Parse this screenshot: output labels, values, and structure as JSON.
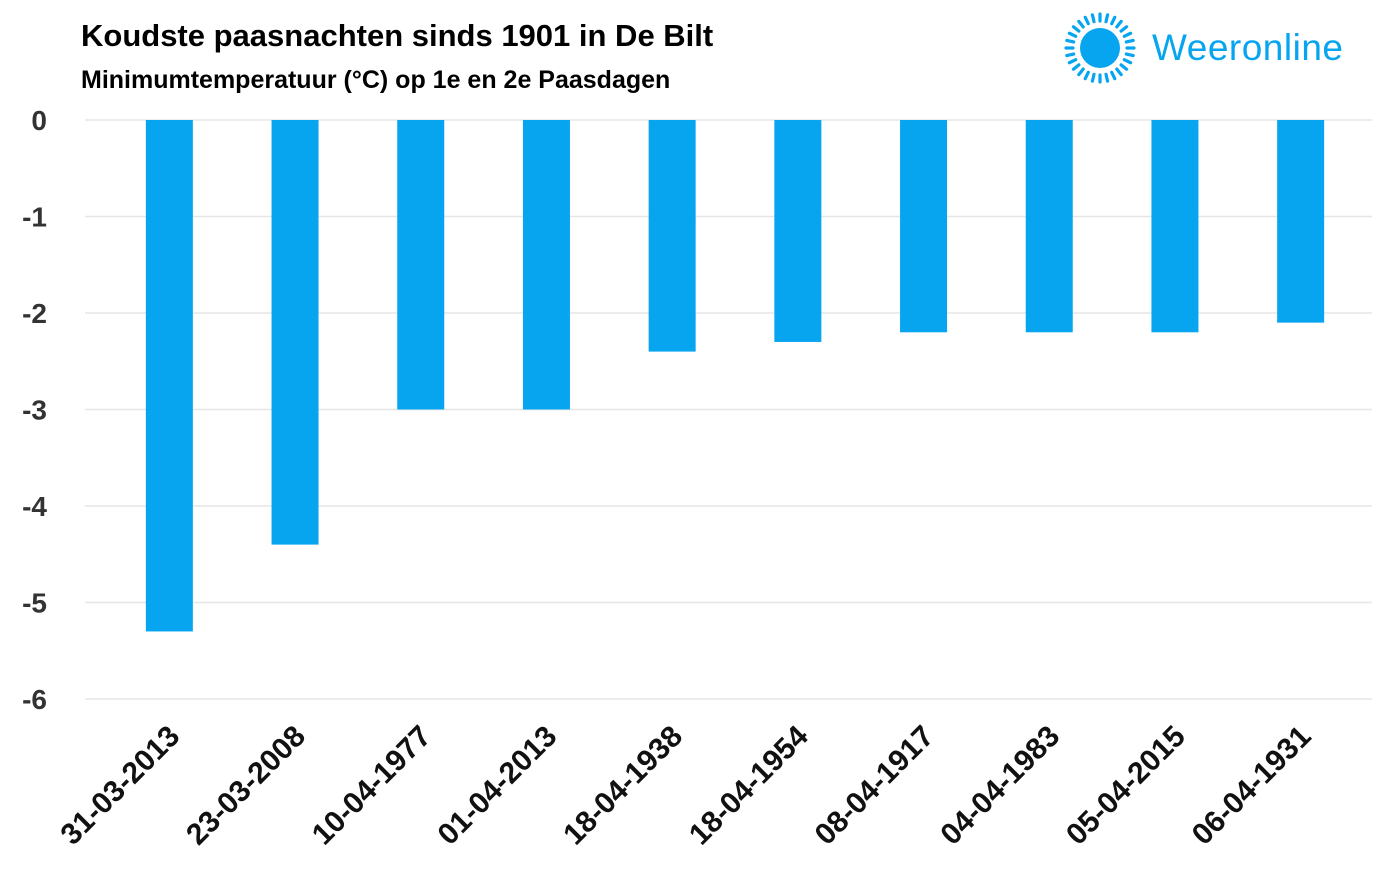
{
  "header": {
    "brand": "Weeronline"
  },
  "colors": {
    "bar": "#07a5f0",
    "brand": "#07a5f0",
    "grid": "#e6e6e6"
  },
  "chart_data": {
    "type": "bar",
    "title": "Koudste paasnachten sinds 1901 in De Bilt",
    "subtitle": "Minimumtemperatuur (°C) op 1e en 2e Paasdagen",
    "xlabel": "",
    "ylabel": "",
    "categories": [
      "31-03-2013",
      "23-03-2008",
      "10-04-1977",
      "01-04-2013",
      "18-04-1938",
      "18-04-1954",
      "08-04-1917",
      "04-04-1983",
      "05-04-2015",
      "06-04-1931"
    ],
    "values": [
      -5.3,
      -4.4,
      -3.0,
      -3.0,
      -2.4,
      -2.3,
      -2.2,
      -2.2,
      -2.2,
      -2.1
    ],
    "ylim": [
      -6,
      0
    ],
    "yticks": [
      0,
      -1,
      -2,
      -3,
      -4,
      -5,
      -6
    ],
    "grid": true,
    "legend": "none"
  }
}
